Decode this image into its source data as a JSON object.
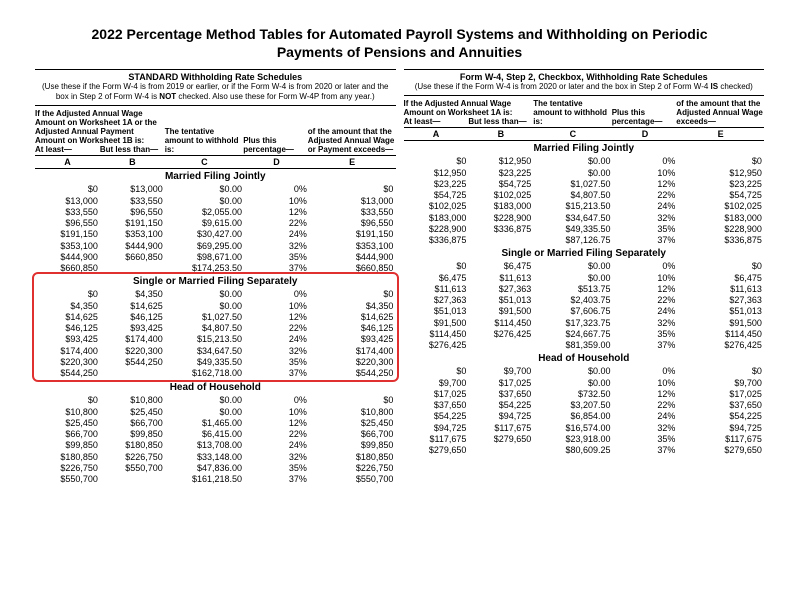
{
  "title_l1": "2022 Percentage Method Tables for Automated Payroll Systems and Withholding on Periodic",
  "title_l2": "Payments of Pensions and Annuities",
  "left": {
    "sched_title": "STANDARD Withholding Rate Schedules",
    "sched_sub": "(Use these if the Form W-4 is from 2019 or earlier, or if the Form W-4 is from 2020 or later and the box in Step 2 of Form W-4 is <b>NOT</b> checked. Also use these for Form W-4P from any year.)",
    "intro": "If the Adjusted Annual Wage Amount on Worksheet 1A or the Adjusted Annual Payment Amount on Worksheet 1B is:",
    "hdr": {
      "A": "At least—",
      "B": "But less than—",
      "C": "The tentative amount to withhold is:",
      "D": "Plus this percentage—",
      "E": "of the amount that the Adjusted Annual Wage or Payment exceeds—"
    },
    "letters": [
      "A",
      "B",
      "C",
      "D",
      "E"
    ],
    "sections": [
      {
        "title": "Married Filing Jointly",
        "rows": [
          [
            "$0",
            "$13,000",
            "$0.00",
            "0%",
            "$0"
          ],
          [
            "$13,000",
            "$33,550",
            "$0.00",
            "10%",
            "$13,000"
          ],
          [
            "$33,550",
            "$96,550",
            "$2,055.00",
            "12%",
            "$33,550"
          ],
          [
            "$96,550",
            "$191,150",
            "$9,615.00",
            "22%",
            "$96,550"
          ],
          [
            "$191,150",
            "$353,100",
            "$30,427.00",
            "24%",
            "$191,150"
          ],
          [
            "$353,100",
            "$444,900",
            "$69,295.00",
            "32%",
            "$353,100"
          ],
          [
            "$444,900",
            "$660,850",
            "$98,671.00",
            "35%",
            "$444,900"
          ],
          [
            "$660,850",
            "",
            "$174,253.50",
            "37%",
            "$660,850"
          ]
        ]
      },
      {
        "title": "Single or Married Filing Separately",
        "highlight": true,
        "rows": [
          [
            "$0",
            "$4,350",
            "$0.00",
            "0%",
            "$0"
          ],
          [
            "$4,350",
            "$14,625",
            "$0.00",
            "10%",
            "$4,350"
          ],
          [
            "$14,625",
            "$46,125",
            "$1,027.50",
            "12%",
            "$14,625"
          ],
          [
            "$46,125",
            "$93,425",
            "$4,807.50",
            "22%",
            "$46,125"
          ],
          [
            "$93,425",
            "$174,400",
            "$15,213.50",
            "24%",
            "$93,425"
          ],
          [
            "$174,400",
            "$220,300",
            "$34,647.50",
            "32%",
            "$174,400"
          ],
          [
            "$220,300",
            "$544,250",
            "$49,335.50",
            "35%",
            "$220,300"
          ],
          [
            "$544,250",
            "",
            "$162,718.00",
            "37%",
            "$544,250"
          ]
        ]
      },
      {
        "title": "Head of Household",
        "rows": [
          [
            "$0",
            "$10,800",
            "$0.00",
            "0%",
            "$0"
          ],
          [
            "$10,800",
            "$25,450",
            "$0.00",
            "10%",
            "$10,800"
          ],
          [
            "$25,450",
            "$66,700",
            "$1,465.00",
            "12%",
            "$25,450"
          ],
          [
            "$66,700",
            "$99,850",
            "$6,415.00",
            "22%",
            "$66,700"
          ],
          [
            "$99,850",
            "$180,850",
            "$13,708.00",
            "24%",
            "$99,850"
          ],
          [
            "$180,850",
            "$226,750",
            "$33,148.00",
            "32%",
            "$180,850"
          ],
          [
            "$226,750",
            "$550,700",
            "$47,836.00",
            "35%",
            "$226,750"
          ],
          [
            "$550,700",
            "",
            "$161,218.50",
            "37%",
            "$550,700"
          ]
        ]
      }
    ]
  },
  "right": {
    "sched_title": "Form W-4, Step 2, Checkbox, Withholding Rate Schedules",
    "sched_sub": "(Use these if the Form W-4 is from 2020 or later and the box in Step 2 of Form W-4 <b>IS</b> checked)",
    "intro": "If the Adjusted Annual Wage Amount on Worksheet 1A is:",
    "hdr": {
      "A": "At least—",
      "B": "But less than—",
      "C": "The tentative amount to withhold is:",
      "D": "Plus this percentage—",
      "E": "of the amount that the Adjusted Annual Wage exceeds—"
    },
    "letters": [
      "A",
      "B",
      "C",
      "D",
      "E"
    ],
    "sections": [
      {
        "title": "Married Filing Jointly",
        "rows": [
          [
            "$0",
            "$12,950",
            "$0.00",
            "0%",
            "$0"
          ],
          [
            "$12,950",
            "$23,225",
            "$0.00",
            "10%",
            "$12,950"
          ],
          [
            "$23,225",
            "$54,725",
            "$1,027.50",
            "12%",
            "$23,225"
          ],
          [
            "$54,725",
            "$102,025",
            "$4,807.50",
            "22%",
            "$54,725"
          ],
          [
            "$102,025",
            "$183,000",
            "$15,213.50",
            "24%",
            "$102,025"
          ],
          [
            "$183,000",
            "$228,900",
            "$34,647.50",
            "32%",
            "$183,000"
          ],
          [
            "$228,900",
            "$336,875",
            "$49,335.50",
            "35%",
            "$228,900"
          ],
          [
            "$336,875",
            "",
            "$87,126.75",
            "37%",
            "$336,875"
          ]
        ]
      },
      {
        "title": "Single or Married Filing Separately",
        "rows": [
          [
            "$0",
            "$6,475",
            "$0.00",
            "0%",
            "$0"
          ],
          [
            "$6,475",
            "$11,613",
            "$0.00",
            "10%",
            "$6,475"
          ],
          [
            "$11,613",
            "$27,363",
            "$513.75",
            "12%",
            "$11,613"
          ],
          [
            "$27,363",
            "$51,013",
            "$2,403.75",
            "22%",
            "$27,363"
          ],
          [
            "$51,013",
            "$91,500",
            "$7,606.75",
            "24%",
            "$51,013"
          ],
          [
            "$91,500",
            "$114,450",
            "$17,323.75",
            "32%",
            "$91,500"
          ],
          [
            "$114,450",
            "$276,425",
            "$24,667.75",
            "35%",
            "$114,450"
          ],
          [
            "$276,425",
            "",
            "$81,359.00",
            "37%",
            "$276,425"
          ]
        ]
      },
      {
        "title": "Head of Household",
        "rows": [
          [
            "$0",
            "$9,700",
            "$0.00",
            "0%",
            "$0"
          ],
          [
            "$9,700",
            "$17,025",
            "$0.00",
            "10%",
            "$9,700"
          ],
          [
            "$17,025",
            "$37,650",
            "$732.50",
            "12%",
            "$17,025"
          ],
          [
            "$37,650",
            "$54,225",
            "$3,207.50",
            "22%",
            "$37,650"
          ],
          [
            "$54,225",
            "$94,725",
            "$6,854.00",
            "24%",
            "$54,225"
          ],
          [
            "$94,725",
            "$117,675",
            "$16,574.00",
            "32%",
            "$94,725"
          ],
          [
            "$117,675",
            "$279,650",
            "$23,918.00",
            "35%",
            "$117,675"
          ],
          [
            "$279,650",
            "",
            "$80,609.25",
            "37%",
            "$279,650"
          ]
        ]
      }
    ]
  }
}
